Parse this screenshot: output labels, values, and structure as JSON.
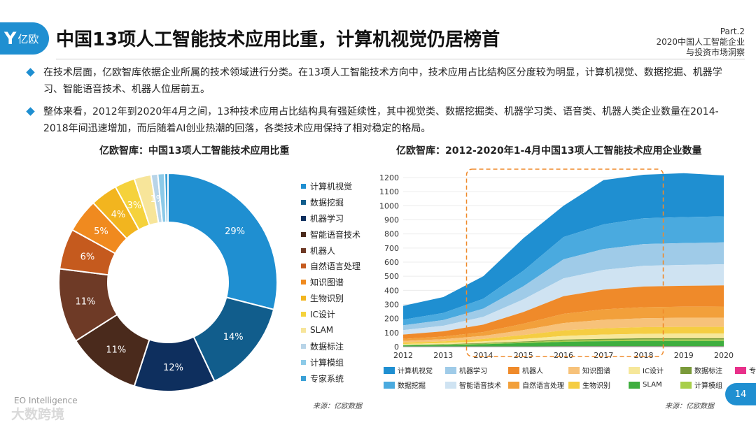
{
  "header": {
    "logo_mark": "Y",
    "logo_brand": "亿欧",
    "title": "中国13项人工智能技术应用比重，计算机视觉仍居榜首",
    "part": "Part.2",
    "part_line1": "2020中国人工智能企业",
    "part_line2": "与投资市场洞察"
  },
  "bullets": [
    "在技术层面，亿欧智库依据企业所属的技术领域进行分类。在13项人工智能技术方向中，技术应用占比结构区分度较为明显，计算机视觉、数据挖掘、机器学习、智能语音技术、机器人位居前五。",
    "整体来看，2012年到2020年4月之间，13种技术应用占比结构具有强延续性，其中视觉类、数据挖掘类、机器学习类、语音类、机器人类企业数量在2014-2018年间迅速增加，而后随着AI创业热潮的回落，各类技术应用保持了相对稳定的格局。"
  ],
  "footer": {
    "source_left": "来源：亿欧数据",
    "source_right": "来源：亿欧数据",
    "brand": "EO Intelligence",
    "watermark": "大数跨境",
    "page": "14"
  },
  "chart_data": [
    {
      "type": "pie",
      "variant": "donut",
      "title": "亿欧智库：中国13项人工智能技术应用比重",
      "categories": [
        "计算机视觉",
        "数据挖掘",
        "机器学习",
        "智能语音技术",
        "机器人",
        "自然语言处理",
        "知识图谱",
        "生物识别",
        "IC设计",
        "SLAM",
        "数据标注",
        "计算模组",
        "专家系统"
      ],
      "values": [
        29,
        14,
        12,
        11,
        11,
        6,
        5,
        4,
        3,
        2.5,
        1,
        1,
        0.5
      ],
      "labels": [
        "29%",
        "14%",
        "12%",
        "11%",
        "11%",
        "6%",
        "5%",
        "4%",
        "3%",
        "",
        "1%",
        "",
        ""
      ],
      "colors": [
        "#1f8fd1",
        "#115d8c",
        "#0e2f5e",
        "#4a2a1c",
        "#6e3a26",
        "#c55a1e",
        "#f08a1f",
        "#f2b51f",
        "#f5d23c",
        "#f7e59a",
        "#b8d4e8",
        "#8ccae8",
        "#3aa0d6"
      ],
      "legend_position": "right"
    },
    {
      "type": "area",
      "stacked": true,
      "title": "亿欧智库：2012-2020年1-4月中国13项人工智能技术应用企业数量",
      "x": [
        2012,
        2013,
        2014,
        2015,
        2016,
        2017,
        2018,
        2019,
        2020
      ],
      "ylim": [
        0,
        1200
      ],
      "yticks": [
        0,
        100,
        200,
        300,
        400,
        500,
        600,
        700,
        800,
        900,
        1000,
        1100,
        1200
      ],
      "highlight_range": [
        "2014",
        "2018"
      ],
      "series": [
        {
          "name": "专家系统",
          "color": "#e8308a",
          "values": [
            1,
            1,
            2,
            2,
            3,
            3,
            3,
            3,
            3
          ]
        },
        {
          "name": "SLAM",
          "color": "#3fae3f",
          "values": [
            8,
            11,
            16,
            24,
            32,
            36,
            38,
            38,
            38
          ]
        },
        {
          "name": "计算模组",
          "color": "#a8cf4a",
          "values": [
            2,
            3,
            4,
            6,
            8,
            9,
            10,
            10,
            10
          ]
        },
        {
          "name": "数据标注",
          "color": "#7a9a3a",
          "values": [
            2,
            3,
            4,
            5,
            7,
            8,
            9,
            9,
            9
          ]
        },
        {
          "name": "IC设计",
          "color": "#f6e79a",
          "values": [
            6,
            8,
            12,
            18,
            26,
            30,
            32,
            33,
            33
          ]
        },
        {
          "name": "生物识别",
          "color": "#f5cd42",
          "values": [
            10,
            12,
            17,
            28,
            40,
            45,
            47,
            48,
            48
          ]
        },
        {
          "name": "知识图谱",
          "color": "#f7c27a",
          "values": [
            12,
            15,
            22,
            35,
            52,
            60,
            63,
            64,
            64
          ]
        },
        {
          "name": "自然语言处理",
          "color": "#f2a03b",
          "values": [
            15,
            19,
            27,
            45,
            65,
            74,
            78,
            79,
            80
          ]
        },
        {
          "name": "机器人",
          "color": "#ef8a2a",
          "values": [
            30,
            37,
            53,
            83,
            125,
            140,
            147,
            148,
            150
          ]
        },
        {
          "name": "智能语音技术",
          "color": "#cfe3f2",
          "values": [
            32,
            40,
            55,
            90,
            127,
            140,
            147,
            148,
            150
          ]
        },
        {
          "name": "机器学习",
          "color": "#9fcbe8",
          "values": [
            34,
            40,
            58,
            93,
            135,
            148,
            154,
            155,
            155
          ]
        },
        {
          "name": "数据挖掘",
          "color": "#4aaadf",
          "values": [
            40,
            50,
            70,
            110,
            158,
            175,
            183,
            184,
            185
          ]
        },
        {
          "name": "计算机视觉",
          "color": "#1f8fd1",
          "values": [
            98,
            113,
            160,
            231,
            222,
            314,
            309,
            312,
            290
          ]
        }
      ],
      "legend_order": [
        "计算机视觉",
        "机器学习",
        "机器人",
        "知识图谱",
        "IC设计",
        "数据标注",
        "专家系统",
        "数据挖掘",
        "智能语音技术",
        "自然语言处理",
        "生物识别",
        "SLAM",
        "计算模组"
      ],
      "legend_position": "bottom"
    }
  ]
}
